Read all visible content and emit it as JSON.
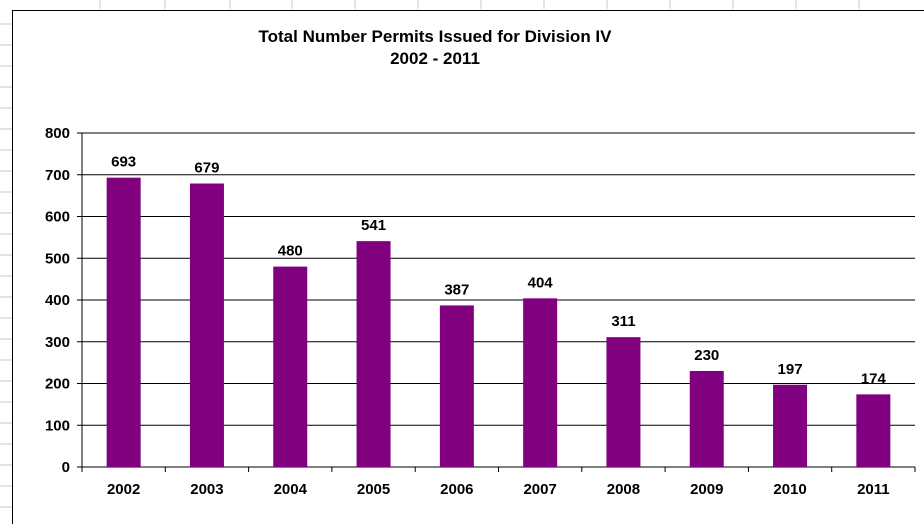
{
  "chart_data": {
    "type": "bar",
    "title": "Total Number  Permits Issued for Division IV",
    "subtitle": "2002 - 2011",
    "categories": [
      "2002",
      "2003",
      "2004",
      "2005",
      "2006",
      "2007",
      "2008",
      "2009",
      "2010",
      "2011"
    ],
    "values": [
      693,
      679,
      480,
      541,
      387,
      404,
      311,
      230,
      197,
      174
    ],
    "ylim": [
      0,
      800
    ],
    "yticks": [
      "0",
      "100",
      "200",
      "300",
      "400",
      "500",
      "600",
      "700",
      "800"
    ],
    "grid": true,
    "legend": "none",
    "bar_color": "#800080",
    "data_labels": true
  }
}
